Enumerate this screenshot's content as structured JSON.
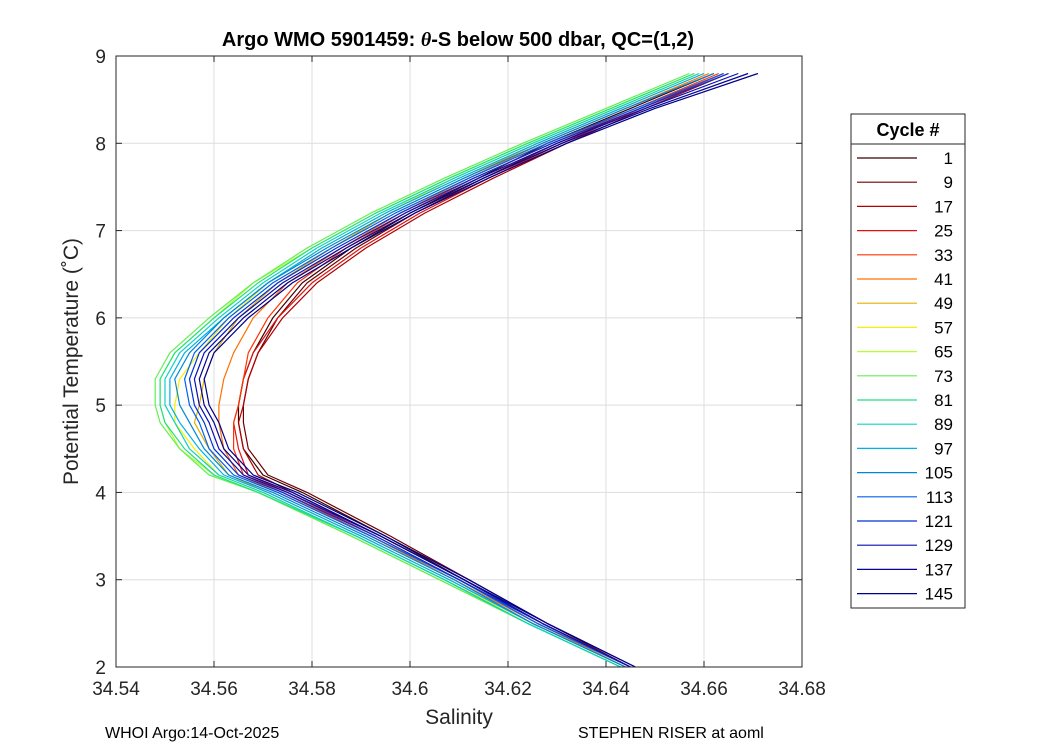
{
  "chart_data": {
    "type": "line",
    "title_pre": "Argo WMO 5901459: ",
    "title_theta": "θ",
    "title_post": "-S below 500 dbar,  QC=(1,2)",
    "xlabel": "Salinity",
    "ylabel": "Potential Temperature (˚C)",
    "xlim": [
      34.54,
      34.68
    ],
    "ylim": [
      2,
      9
    ],
    "xticks": [
      34.54,
      34.56,
      34.58,
      34.6,
      34.62,
      34.64,
      34.66,
      34.68
    ],
    "xtick_labels": [
      "34.54",
      "34.56",
      "34.58",
      "34.6",
      "34.62",
      "34.64",
      "34.66",
      "34.68"
    ],
    "yticks": [
      2,
      3,
      4,
      5,
      6,
      7,
      8,
      9
    ],
    "ytick_labels": [
      "2",
      "3",
      "4",
      "5",
      "6",
      "7",
      "8",
      "9"
    ],
    "grid": true,
    "legend": {
      "title": "Cycle #",
      "position": "right",
      "entries": [
        "1",
        "9",
        "17",
        "25",
        "33",
        "41",
        "49",
        "57",
        "65",
        "73",
        "81",
        "89",
        "97",
        "105",
        "113",
        "121",
        "129",
        "137",
        "145"
      ],
      "colors": [
        "#3d0000",
        "#6e0000",
        "#b00000",
        "#e01010",
        "#ff3300",
        "#ff7000",
        "#e0b000",
        "#f5f000",
        "#b8ff30",
        "#60f050",
        "#20e080",
        "#10d0c0",
        "#00b0e8",
        "#0088d8",
        "#0060f0",
        "#0030d8",
        "#0a10b0",
        "#050590",
        "#00008c"
      ]
    },
    "theta_profile": [
      2.0,
      2.5,
      3.0,
      3.5,
      4.0,
      4.2,
      4.5,
      4.8,
      5.0,
      5.3,
      5.6,
      6.0,
      6.4,
      6.8,
      7.2,
      7.6,
      8.0,
      8.4,
      8.8
    ],
    "series": [
      {
        "name": "1",
        "salinity": [
          34.645,
          34.627,
          34.611,
          34.595,
          34.578,
          34.57,
          34.566,
          34.565,
          34.565,
          34.566,
          34.568,
          34.572,
          34.578,
          34.588,
          34.6,
          34.614,
          34.628,
          34.645,
          34.662
        ]
      },
      {
        "name": "9",
        "salinity": [
          34.645,
          34.628,
          34.612,
          34.596,
          34.579,
          34.571,
          34.567,
          34.566,
          34.566,
          34.567,
          34.569,
          34.573,
          34.579,
          34.589,
          34.601,
          34.615,
          34.63,
          34.647,
          34.664
        ]
      },
      {
        "name": "17",
        "salinity": [
          34.645,
          34.627,
          34.611,
          34.594,
          34.576,
          34.569,
          34.566,
          34.565,
          34.566,
          34.567,
          34.569,
          34.574,
          34.581,
          34.591,
          34.603,
          34.617,
          34.632,
          34.648,
          34.665
        ]
      },
      {
        "name": "25",
        "salinity": [
          34.645,
          34.626,
          34.61,
          34.593,
          34.575,
          34.567,
          34.565,
          34.564,
          34.565,
          34.566,
          34.568,
          34.573,
          34.58,
          34.59,
          34.602,
          34.616,
          34.631,
          34.647,
          34.664
        ]
      },
      {
        "name": "33",
        "salinity": [
          34.645,
          34.627,
          34.61,
          34.592,
          34.574,
          34.566,
          34.564,
          34.564,
          34.565,
          34.566,
          34.567,
          34.571,
          34.577,
          34.587,
          34.599,
          34.613,
          34.629,
          34.646,
          34.663
        ]
      },
      {
        "name": "41",
        "salinity": [
          34.644,
          34.626,
          34.609,
          34.592,
          34.573,
          34.565,
          34.562,
          34.561,
          34.561,
          34.562,
          34.564,
          34.568,
          34.575,
          34.586,
          34.598,
          34.612,
          34.627,
          34.644,
          34.661
        ]
      },
      {
        "name": "49",
        "salinity": [
          34.644,
          34.625,
          34.608,
          34.59,
          34.571,
          34.563,
          34.559,
          34.556,
          34.557,
          34.558,
          34.56,
          34.565,
          34.573,
          34.584,
          34.596,
          34.611,
          34.626,
          34.643,
          34.66
        ]
      },
      {
        "name": "57",
        "salinity": [
          34.644,
          34.625,
          34.607,
          34.589,
          34.57,
          34.561,
          34.556,
          34.552,
          34.552,
          34.553,
          34.557,
          34.563,
          34.571,
          34.582,
          34.595,
          34.609,
          34.625,
          34.642,
          34.659
        ]
      },
      {
        "name": "65",
        "salinity": [
          34.643,
          34.624,
          34.606,
          34.588,
          34.569,
          34.56,
          34.553,
          34.55,
          34.549,
          34.549,
          34.552,
          34.56,
          34.568,
          34.58,
          34.593,
          34.608,
          34.624,
          34.641,
          34.658
        ]
      },
      {
        "name": "73",
        "salinity": [
          34.643,
          34.624,
          34.606,
          34.588,
          34.569,
          34.559,
          34.553,
          34.549,
          34.548,
          34.548,
          34.551,
          34.559,
          34.568,
          34.579,
          34.592,
          34.607,
          34.623,
          34.64,
          34.657
        ]
      },
      {
        "name": "81",
        "salinity": [
          34.643,
          34.624,
          34.607,
          34.589,
          34.569,
          34.56,
          34.554,
          34.55,
          34.549,
          34.549,
          34.552,
          34.56,
          34.569,
          34.58,
          34.593,
          34.608,
          34.624,
          34.641,
          34.658
        ]
      },
      {
        "name": "89",
        "salinity": [
          34.643,
          34.624,
          34.607,
          34.589,
          34.57,
          34.561,
          34.555,
          34.552,
          34.55,
          34.55,
          34.553,
          34.561,
          34.57,
          34.581,
          34.594,
          34.609,
          34.625,
          34.642,
          34.659
        ]
      },
      {
        "name": "97",
        "salinity": [
          34.644,
          34.625,
          34.608,
          34.59,
          34.571,
          34.562,
          34.557,
          34.553,
          34.551,
          34.551,
          34.554,
          34.562,
          34.571,
          34.582,
          34.595,
          34.61,
          34.626,
          34.643,
          34.66
        ]
      },
      {
        "name": "105",
        "salinity": [
          34.644,
          34.625,
          34.609,
          34.591,
          34.572,
          34.563,
          34.558,
          34.555,
          34.553,
          34.552,
          34.555,
          34.562,
          34.571,
          34.583,
          34.596,
          34.611,
          34.627,
          34.644,
          34.662
        ]
      },
      {
        "name": "113",
        "salinity": [
          34.645,
          34.626,
          34.61,
          34.592,
          34.573,
          34.564,
          34.559,
          34.557,
          34.555,
          34.554,
          34.556,
          34.563,
          34.572,
          34.584,
          34.597,
          34.612,
          34.628,
          34.646,
          34.664
        ]
      },
      {
        "name": "121",
        "salinity": [
          34.645,
          34.627,
          34.61,
          34.593,
          34.574,
          34.565,
          34.56,
          34.558,
          34.556,
          34.555,
          34.557,
          34.564,
          34.573,
          34.585,
          34.598,
          34.613,
          34.629,
          34.647,
          34.665
        ]
      },
      {
        "name": "129",
        "salinity": [
          34.645,
          34.627,
          34.611,
          34.594,
          34.575,
          34.566,
          34.561,
          34.559,
          34.557,
          34.556,
          34.558,
          34.565,
          34.574,
          34.586,
          34.599,
          34.614,
          34.63,
          34.648,
          34.667
        ]
      },
      {
        "name": "137",
        "salinity": [
          34.646,
          34.628,
          34.611,
          34.594,
          34.576,
          34.567,
          34.562,
          34.56,
          34.558,
          34.557,
          34.559,
          34.566,
          34.575,
          34.587,
          34.6,
          34.615,
          34.631,
          34.649,
          34.669
        ]
      },
      {
        "name": "145",
        "salinity": [
          34.646,
          34.628,
          34.612,
          34.595,
          34.577,
          34.568,
          34.563,
          34.561,
          34.559,
          34.558,
          34.56,
          34.567,
          34.576,
          34.588,
          34.601,
          34.616,
          34.632,
          34.65,
          34.671
        ]
      }
    ]
  },
  "footer": {
    "left": "WHOI Argo:14-Oct-2025",
    "right": "STEPHEN RISER at aoml"
  }
}
